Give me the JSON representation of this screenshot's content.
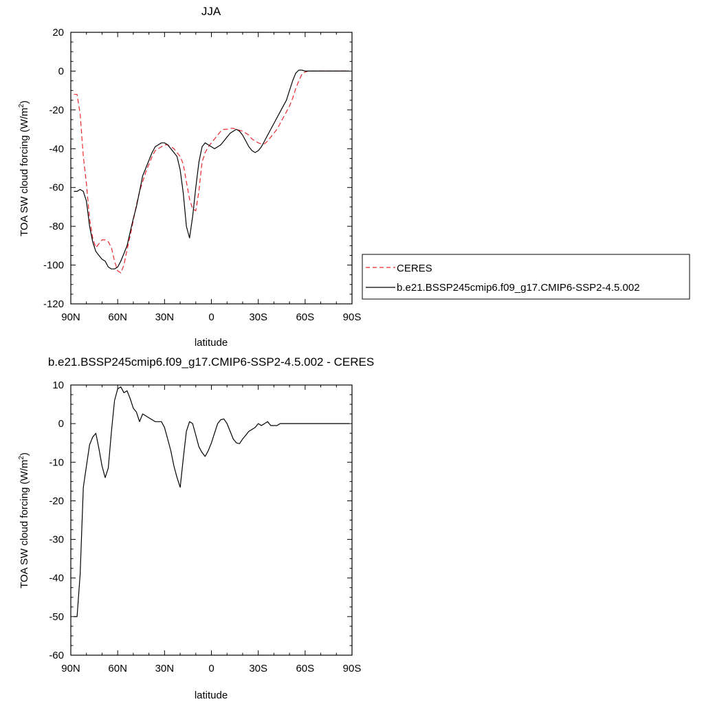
{
  "chart_data": [
    {
      "type": "line",
      "title": "JJA",
      "xlabel": "latitude",
      "ylabel": "TOA SW cloud forcing (W/m",
      "ylabel_sup": "2",
      "ylabel_close": ")",
      "x_ticks": [
        {
          "value": 90,
          "label": "90N"
        },
        {
          "value": 60,
          "label": "60N"
        },
        {
          "value": 30,
          "label": "30N"
        },
        {
          "value": 0,
          "label": "0"
        },
        {
          "value": -30,
          "label": "30S"
        },
        {
          "value": -60,
          "label": "60S"
        },
        {
          "value": -90,
          "label": "90S"
        }
      ],
      "xlim": [
        90,
        -90
      ],
      "ylim": [
        -120,
        20
      ],
      "y_ticks": [
        20,
        0,
        -20,
        -40,
        -60,
        -80,
        -100,
        -120
      ],
      "grid": false,
      "legend_position": "right",
      "series": [
        {
          "name": "CERES",
          "color": "#e8262b",
          "dash": "dashed",
          "x": [
            88,
            86,
            84,
            82,
            80,
            78,
            76,
            74,
            72,
            70,
            68,
            66,
            64,
            62,
            60,
            58,
            56,
            54,
            52,
            50,
            48,
            46,
            44,
            42,
            40,
            38,
            36,
            34,
            32,
            30,
            28,
            26,
            24,
            22,
            20,
            18,
            16,
            14,
            12,
            10,
            8,
            6,
            4,
            2,
            0,
            -2,
            -4,
            -6,
            -8,
            -10,
            -12,
            -14,
            -16,
            -18,
            -20,
            -22,
            -24,
            -26,
            -28,
            -30,
            -32,
            -34,
            -36,
            -38,
            -40,
            -42,
            -44,
            -46,
            -48,
            -50,
            -52,
            -54,
            -56,
            -58,
            -60,
            -62,
            -64,
            -66,
            -68,
            -70,
            -72,
            -74,
            -76,
            -78,
            -80,
            -82,
            -84,
            -86,
            -88
          ],
          "y": [
            -12,
            -12,
            -22,
            -44,
            -58,
            -76,
            -86,
            -91,
            -89,
            -87,
            -87,
            -88,
            -91,
            -98,
            -103,
            -104,
            -100,
            -92,
            -85,
            -77,
            -69,
            -62,
            -57,
            -52,
            -48,
            -44,
            -41,
            -40,
            -39,
            -38,
            -38,
            -39,
            -40,
            -42,
            -44,
            -48,
            -57,
            -66,
            -71,
            -72,
            -62,
            -47,
            -42,
            -39,
            -37,
            -35,
            -33,
            -31,
            -30,
            -30,
            -29.5,
            -29.5,
            -30,
            -30.5,
            -31,
            -32,
            -33,
            -35,
            -36,
            -37,
            -37.5,
            -37.5,
            -36,
            -34,
            -32,
            -30,
            -27,
            -24,
            -21,
            -18,
            -14,
            -9,
            -5,
            -1.5,
            -0.5,
            0,
            0,
            0,
            0,
            0,
            0,
            0,
            0,
            0,
            0,
            0,
            0,
            0,
            0
          ]
        },
        {
          "name": "b.e21.BSSP245cmip6.f09_g17.CMIP6-SSP2-4.5.002",
          "color": "#000000",
          "dash": "solid",
          "x": [
            88,
            86,
            84,
            82,
            80,
            78,
            76,
            74,
            72,
            70,
            68,
            66,
            64,
            62,
            60,
            58,
            56,
            54,
            52,
            50,
            48,
            46,
            44,
            42,
            40,
            38,
            36,
            34,
            32,
            30,
            28,
            26,
            24,
            22,
            20,
            18,
            16,
            14,
            12,
            10,
            8,
            6,
            4,
            2,
            0,
            -2,
            -4,
            -6,
            -8,
            -10,
            -12,
            -14,
            -16,
            -18,
            -20,
            -22,
            -24,
            -26,
            -28,
            -30,
            -32,
            -34,
            -36,
            -38,
            -40,
            -42,
            -44,
            -46,
            -48,
            -50,
            -52,
            -54,
            -56,
            -58,
            -60,
            -62,
            -64,
            -66,
            -68,
            -70,
            -72,
            -74,
            -76,
            -78,
            -80,
            -82,
            -84,
            -86,
            -88
          ],
          "y": [
            -62,
            -62,
            -61,
            -62,
            -67,
            -80,
            -88,
            -93,
            -95,
            -97,
            -98,
            -101,
            -102,
            -102,
            -101,
            -98,
            -94,
            -90,
            -83,
            -76,
            -70,
            -62,
            -54,
            -50,
            -46,
            -42,
            -39,
            -38,
            -37,
            -37,
            -38,
            -40,
            -42,
            -44,
            -51,
            -63,
            -80,
            -86,
            -75,
            -60,
            -47,
            -39,
            -37,
            -38,
            -39,
            -40,
            -39,
            -38,
            -36,
            -34,
            -32,
            -31,
            -30,
            -31,
            -33,
            -36,
            -39,
            -41,
            -42,
            -41,
            -39,
            -36,
            -33,
            -30,
            -27,
            -24,
            -21,
            -18,
            -15,
            -10,
            -5,
            -1,
            0.5,
            0.5,
            0,
            0,
            0,
            0,
            0,
            0,
            0,
            0,
            0,
            0,
            0,
            0,
            0,
            0,
            0
          ]
        }
      ]
    },
    {
      "type": "line",
      "title": "b.e21.BSSP245cmip6.f09_g17.CMIP6-SSP2-4.5.002 - CERES",
      "xlabel": "latitude",
      "ylabel": "TOA SW cloud forcing (W/m",
      "ylabel_sup": "2",
      "ylabel_close": ")",
      "x_ticks": [
        {
          "value": 90,
          "label": "90N"
        },
        {
          "value": 60,
          "label": "60N"
        },
        {
          "value": 30,
          "label": "30N"
        },
        {
          "value": 0,
          "label": "0"
        },
        {
          "value": -30,
          "label": "30S"
        },
        {
          "value": -60,
          "label": "60S"
        },
        {
          "value": -90,
          "label": "90S"
        }
      ],
      "xlim": [
        90,
        -90
      ],
      "ylim": [
        -60,
        10
      ],
      "y_ticks": [
        10,
        0,
        -10,
        -20,
        -30,
        -40,
        -50,
        -60
      ],
      "grid": false,
      "series": [
        {
          "color": "#000000",
          "dash": "solid",
          "x": [
            88,
            86,
            84,
            82,
            80,
            78,
            76,
            74,
            72,
            70,
            68,
            66,
            64,
            62,
            60,
            58,
            56,
            54,
            52,
            50,
            48,
            46,
            44,
            42,
            40,
            38,
            36,
            34,
            32,
            30,
            28,
            26,
            24,
            22,
            20,
            18,
            16,
            14,
            12,
            10,
            8,
            6,
            4,
            2,
            0,
            -2,
            -4,
            -6,
            -8,
            -10,
            -12,
            -14,
            -16,
            -18,
            -20,
            -22,
            -24,
            -26,
            -28,
            -30,
            -32,
            -34,
            -36,
            -38,
            -40,
            -42,
            -44,
            -46,
            -48,
            -50,
            -52,
            -54,
            -56,
            -58,
            -60,
            -62,
            -64,
            -66,
            -68,
            -70,
            -72,
            -74,
            -76,
            -78,
            -80,
            -82,
            -84,
            -86,
            -88
          ],
          "y": [
            -50,
            -50,
            -39,
            -16.5,
            -11,
            -5.5,
            -3.5,
            -2.5,
            -6.5,
            -11,
            -14,
            -11.5,
            -2,
            6,
            9,
            9.5,
            8,
            8.5,
            6.5,
            4,
            3,
            0.5,
            2.5,
            2,
            1.5,
            1,
            0.5,
            0.5,
            0.5,
            -1,
            -4,
            -7,
            -11,
            -14,
            -16.5,
            -9,
            -2,
            0.5,
            0,
            -3,
            -6,
            -7.5,
            -8.5,
            -7,
            -5,
            -2.5,
            0,
            1,
            1.2,
            0,
            -2,
            -4,
            -5,
            -5.2,
            -4,
            -3,
            -2,
            -1.5,
            -1,
            0,
            -0.5,
            0,
            0.5,
            -0.5,
            -0.5,
            -0.5,
            0,
            0,
            0,
            0,
            0,
            0,
            0,
            0,
            0,
            0,
            0,
            0,
            0,
            0,
            0,
            0,
            0,
            0,
            0,
            0,
            0,
            0,
            0
          ]
        }
      ]
    }
  ]
}
